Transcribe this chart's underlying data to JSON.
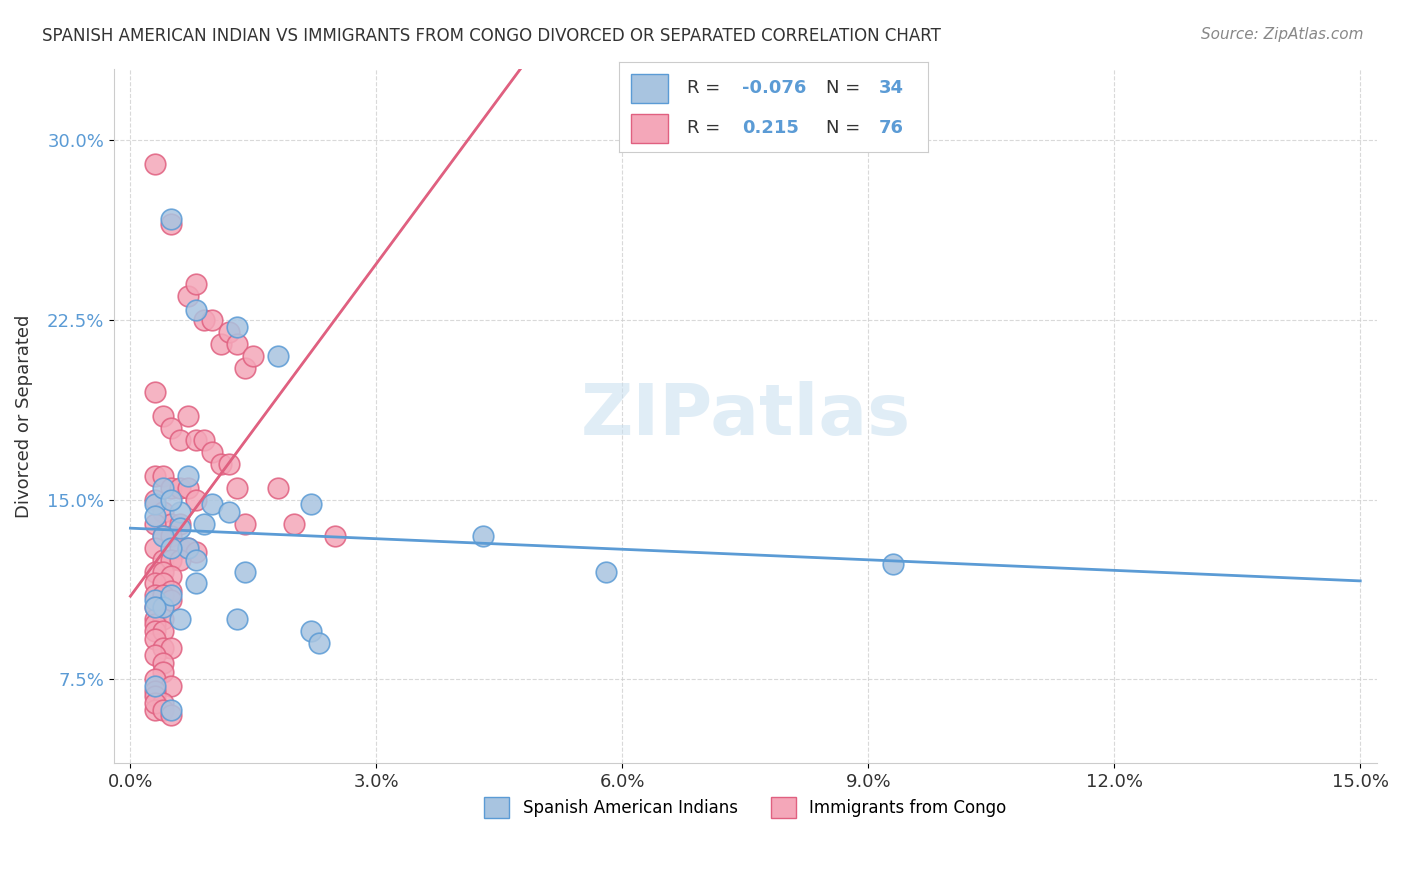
{
  "title": "SPANISH AMERICAN INDIAN VS IMMIGRANTS FROM CONGO DIVORCED OR SEPARATED CORRELATION CHART",
  "source": "Source: ZipAtlas.com",
  "xlabel_bottom": "",
  "ylabel": "Divorced or Separated",
  "xlim": [
    0.0,
    0.15
  ],
  "ylim": [
    0.04,
    0.32
  ],
  "xtick_labels": [
    "0.0%",
    "15.0%"
  ],
  "ytick_labels": [
    "7.5%",
    "15.0%",
    "22.5%",
    "30.0%"
  ],
  "ytick_values": [
    0.075,
    0.15,
    0.225,
    0.3
  ],
  "xtick_values": [
    0.0,
    0.15
  ],
  "legend_label1": "Spanish American Indians",
  "legend_label2": "Immigrants from Congo",
  "r1": "-0.076",
  "n1": "34",
  "r2": "0.215",
  "n2": "76",
  "color_blue": "#a8c4e0",
  "color_pink": "#f4a7b9",
  "line_blue": "#5b9bd5",
  "line_pink": "#e06080",
  "watermark": "ZIPatlas",
  "background_color": "#ffffff",
  "blue_points_x": [
    0.005,
    0.022,
    0.008,
    0.013,
    0.018,
    0.003,
    0.006,
    0.007,
    0.004,
    0.005,
    0.003,
    0.009,
    0.006,
    0.004,
    0.007,
    0.01,
    0.012,
    0.005,
    0.008,
    0.014,
    0.003,
    0.004,
    0.006,
    0.043,
    0.058,
    0.008,
    0.005,
    0.003,
    0.013,
    0.022,
    0.023,
    0.093,
    0.003,
    0.005
  ],
  "blue_points_y": [
    0.267,
    0.148,
    0.229,
    0.222,
    0.21,
    0.148,
    0.145,
    0.16,
    0.155,
    0.15,
    0.143,
    0.14,
    0.138,
    0.135,
    0.13,
    0.148,
    0.145,
    0.13,
    0.125,
    0.12,
    0.108,
    0.105,
    0.1,
    0.135,
    0.12,
    0.115,
    0.11,
    0.105,
    0.1,
    0.095,
    0.09,
    0.123,
    0.072,
    0.062
  ],
  "pink_points_x": [
    0.003,
    0.005,
    0.007,
    0.008,
    0.009,
    0.01,
    0.011,
    0.012,
    0.013,
    0.014,
    0.015,
    0.003,
    0.004,
    0.005,
    0.006,
    0.007,
    0.008,
    0.009,
    0.01,
    0.011,
    0.012,
    0.003,
    0.004,
    0.005,
    0.006,
    0.007,
    0.008,
    0.013,
    0.014,
    0.018,
    0.02,
    0.025,
    0.003,
    0.004,
    0.005,
    0.006,
    0.003,
    0.004,
    0.005,
    0.006,
    0.007,
    0.008,
    0.003,
    0.004,
    0.005,
    0.006,
    0.003,
    0.004,
    0.005,
    0.003,
    0.004,
    0.005,
    0.003,
    0.004,
    0.005,
    0.003,
    0.003,
    0.004,
    0.003,
    0.003,
    0.004,
    0.003,
    0.004,
    0.005,
    0.003,
    0.004,
    0.004,
    0.003,
    0.005,
    0.003,
    0.003,
    0.004,
    0.003,
    0.003,
    0.004,
    0.005
  ],
  "pink_points_y": [
    0.29,
    0.265,
    0.235,
    0.24,
    0.225,
    0.225,
    0.215,
    0.22,
    0.215,
    0.205,
    0.21,
    0.195,
    0.185,
    0.18,
    0.175,
    0.185,
    0.175,
    0.175,
    0.17,
    0.165,
    0.165,
    0.16,
    0.16,
    0.155,
    0.155,
    0.155,
    0.15,
    0.155,
    0.14,
    0.155,
    0.14,
    0.135,
    0.15,
    0.145,
    0.14,
    0.14,
    0.14,
    0.135,
    0.135,
    0.13,
    0.13,
    0.128,
    0.13,
    0.125,
    0.125,
    0.125,
    0.12,
    0.12,
    0.118,
    0.115,
    0.115,
    0.112,
    0.11,
    0.11,
    0.108,
    0.105,
    0.1,
    0.1,
    0.098,
    0.095,
    0.095,
    0.092,
    0.088,
    0.088,
    0.085,
    0.082,
    0.078,
    0.075,
    0.072,
    0.07,
    0.068,
    0.065,
    0.062,
    0.065,
    0.062,
    0.06
  ]
}
